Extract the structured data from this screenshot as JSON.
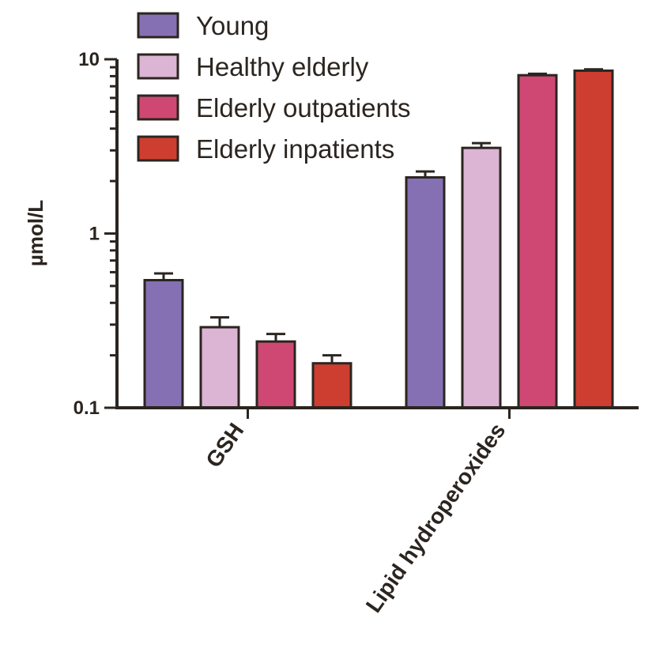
{
  "chart_data": {
    "type": "bar",
    "scale": "log",
    "ylabel": "µmol/L",
    "ylim": [
      0.1,
      10
    ],
    "ytick_labels": [
      "0.1",
      "1",
      "10"
    ],
    "categories": [
      "GSH",
      "Lipid hydroperoxides"
    ],
    "legend_placement": "top",
    "series": [
      {
        "name": "Young",
        "color": "#8670b4",
        "values": [
          0.54,
          2.1
        ],
        "errors": [
          0.05,
          0.17
        ]
      },
      {
        "name": "Healthy elderly",
        "color": "#dcb4d4",
        "values": [
          0.29,
          3.1
        ],
        "errors": [
          0.04,
          0.2
        ]
      },
      {
        "name": "Elderly outpatients",
        "color": "#cf4873",
        "values": [
          0.24,
          8.1
        ],
        "errors": [
          0.025,
          0.15
        ]
      },
      {
        "name": "Elderly inpatients",
        "color": "#cd3e31",
        "values": [
          0.18,
          8.6
        ],
        "errors": [
          0.02,
          0.15
        ]
      }
    ]
  }
}
